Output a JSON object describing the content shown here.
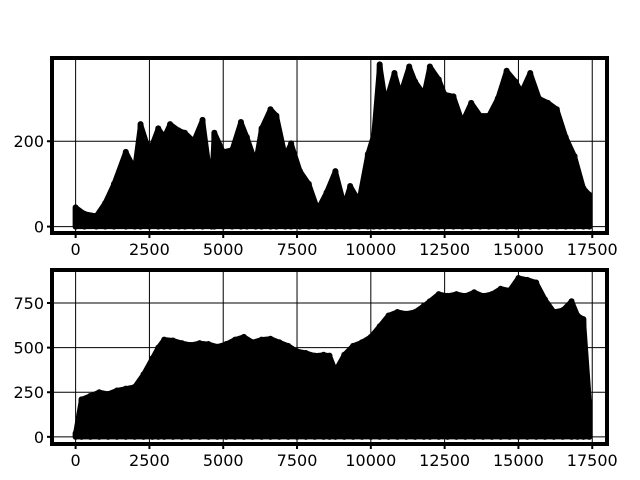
{
  "chart_data": [
    {
      "type": "area",
      "title": "",
      "xlabel": "",
      "ylabel": "",
      "xlim": [
        -800,
        18000
      ],
      "ylim": [
        -15,
        395
      ],
      "xticks": [
        0,
        2500,
        5000,
        7500,
        10000,
        12500,
        15000,
        17500
      ],
      "xtick_labels": [
        "0",
        "2500",
        "5000",
        "7500",
        "10000",
        "12500",
        "15000",
        "17500"
      ],
      "yticks": [
        0,
        200
      ],
      "ytick_labels": [
        "0",
        "200"
      ],
      "grid": true,
      "color": "#000000",
      "envelope": {
        "x": [
          0,
          300,
          700,
          1000,
          1300,
          1700,
          2000,
          2200,
          2500,
          2800,
          3000,
          3200,
          3500,
          3700,
          4000,
          4300,
          4600,
          4700,
          5000,
          5300,
          5600,
          5800,
          6100,
          6300,
          6600,
          6800,
          7100,
          7300,
          7600,
          7900,
          8200,
          8500,
          8800,
          9100,
          9300,
          9600,
          9900,
          10100,
          10300,
          10500,
          10800,
          11000,
          11300,
          11500,
          11800,
          12000,
          12300,
          12500,
          12800,
          13100,
          13400,
          13700,
          14000,
          14300,
          14600,
          14900,
          15100,
          15400,
          15700,
          16000,
          16300,
          16600,
          16900,
          17200,
          17400
        ],
        "y": [
          45,
          30,
          25,
          55,
          100,
          175,
          135,
          240,
          175,
          230,
          210,
          240,
          225,
          220,
          200,
          250,
          95,
          220,
          175,
          180,
          245,
          210,
          150,
          230,
          275,
          260,
          165,
          195,
          130,
          100,
          40,
          80,
          130,
          50,
          95,
          60,
          170,
          215,
          380,
          290,
          360,
          310,
          375,
          340,
          310,
          375,
          345,
          310,
          305,
          245,
          290,
          260,
          260,
          300,
          365,
          340,
          315,
          360,
          300,
          290,
          275,
          210,
          165,
          90,
          75
        ]
      }
    },
    {
      "type": "area",
      "title": "",
      "xlabel": "",
      "ylabel": "",
      "xlim": [
        -800,
        18000
      ],
      "ylim": [
        -40,
        935
      ],
      "xticks": [
        0,
        2500,
        5000,
        7500,
        10000,
        12500,
        15000,
        17500
      ],
      "xtick_labels": [
        "0",
        "2500",
        "5000",
        "7500",
        "10000",
        "12500",
        "15000",
        "17500"
      ],
      "yticks": [
        0,
        250,
        500,
        750
      ],
      "ytick_labels": [
        "0",
        "250",
        "500",
        "750"
      ],
      "grid": true,
      "color": "#000000",
      "envelope": {
        "x": [
          0,
          200,
          500,
          800,
          1100,
          1400,
          1700,
          2000,
          2300,
          2600,
          2800,
          3000,
          3300,
          3600,
          3900,
          4200,
          4500,
          4800,
          5100,
          5400,
          5700,
          6000,
          6300,
          6600,
          6900,
          7200,
          7500,
          7800,
          8100,
          8400,
          8600,
          8800,
          9100,
          9400,
          9700,
          10000,
          10300,
          10600,
          10900,
          11200,
          11500,
          11800,
          12000,
          12300,
          12600,
          12900,
          13200,
          13500,
          13800,
          14100,
          14400,
          14700,
          15000,
          15300,
          15600,
          15900,
          16200,
          16500,
          16800,
          17000,
          17200,
          17400
        ],
        "y": [
          20,
          210,
          230,
          250,
          240,
          260,
          270,
          280,
          350,
          440,
          500,
          545,
          540,
          525,
          515,
          525,
          520,
          505,
          520,
          545,
          560,
          530,
          545,
          550,
          530,
          510,
          480,
          470,
          455,
          460,
          455,
          370,
          460,
          510,
          530,
          560,
          620,
          680,
          700,
          690,
          700,
          735,
          760,
          800,
          790,
          800,
          790,
          810,
          790,
          800,
          830,
          820,
          890,
          880,
          865,
          770,
          700,
          710,
          760,
          680,
          660,
          200
        ]
      }
    }
  ]
}
